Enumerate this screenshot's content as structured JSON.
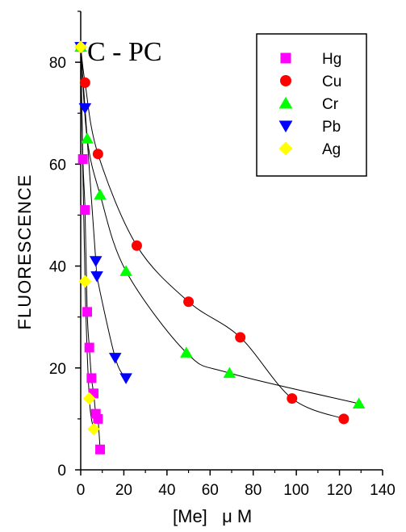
{
  "chart_data": {
    "type": "scatter",
    "title": "C - PC",
    "xlabel": "[Me]   μ M",
    "ylabel": "FLUORESCENCE",
    "xlim": [
      0,
      140
    ],
    "ylim": [
      0,
      90
    ],
    "x_ticks": [
      "0",
      "20",
      "40",
      "60",
      "80",
      "100",
      "120",
      "140"
    ],
    "y_ticks": [
      "0",
      "20",
      "40",
      "60",
      "80"
    ],
    "legend_position": "top-right",
    "series": [
      {
        "name": "Hg",
        "color": "#ff00ff",
        "marker": "square",
        "x": [
          0,
          1,
          2,
          3,
          4,
          5,
          6,
          7,
          8,
          9
        ],
        "y": [
          83,
          61,
          51,
          31,
          24,
          18,
          15,
          11,
          10,
          4
        ]
      },
      {
        "name": "Cu",
        "color": "#ff0000",
        "marker": "circle",
        "x": [
          0,
          2,
          8,
          26,
          50,
          74,
          98,
          122
        ],
        "y": [
          83,
          76,
          62,
          44,
          33,
          26,
          14,
          10
        ]
      },
      {
        "name": "Cr",
        "color": "#00ff00",
        "marker": "triangle-up",
        "x": [
          0,
          3,
          9,
          21,
          49,
          69,
          129
        ],
        "y": [
          83,
          65,
          54,
          39,
          23,
          19,
          13
        ]
      },
      {
        "name": "Pb",
        "color": "#0000ff",
        "marker": "triangle-down",
        "x": [
          0,
          2,
          7,
          7.5,
          16,
          21
        ],
        "y": [
          83,
          71,
          41,
          38,
          22,
          18
        ]
      },
      {
        "name": "Ag",
        "color": "#ffff00",
        "marker": "diamond",
        "x": [
          0,
          2,
          4,
          6
        ],
        "y": [
          83,
          37,
          14,
          8
        ]
      }
    ]
  }
}
